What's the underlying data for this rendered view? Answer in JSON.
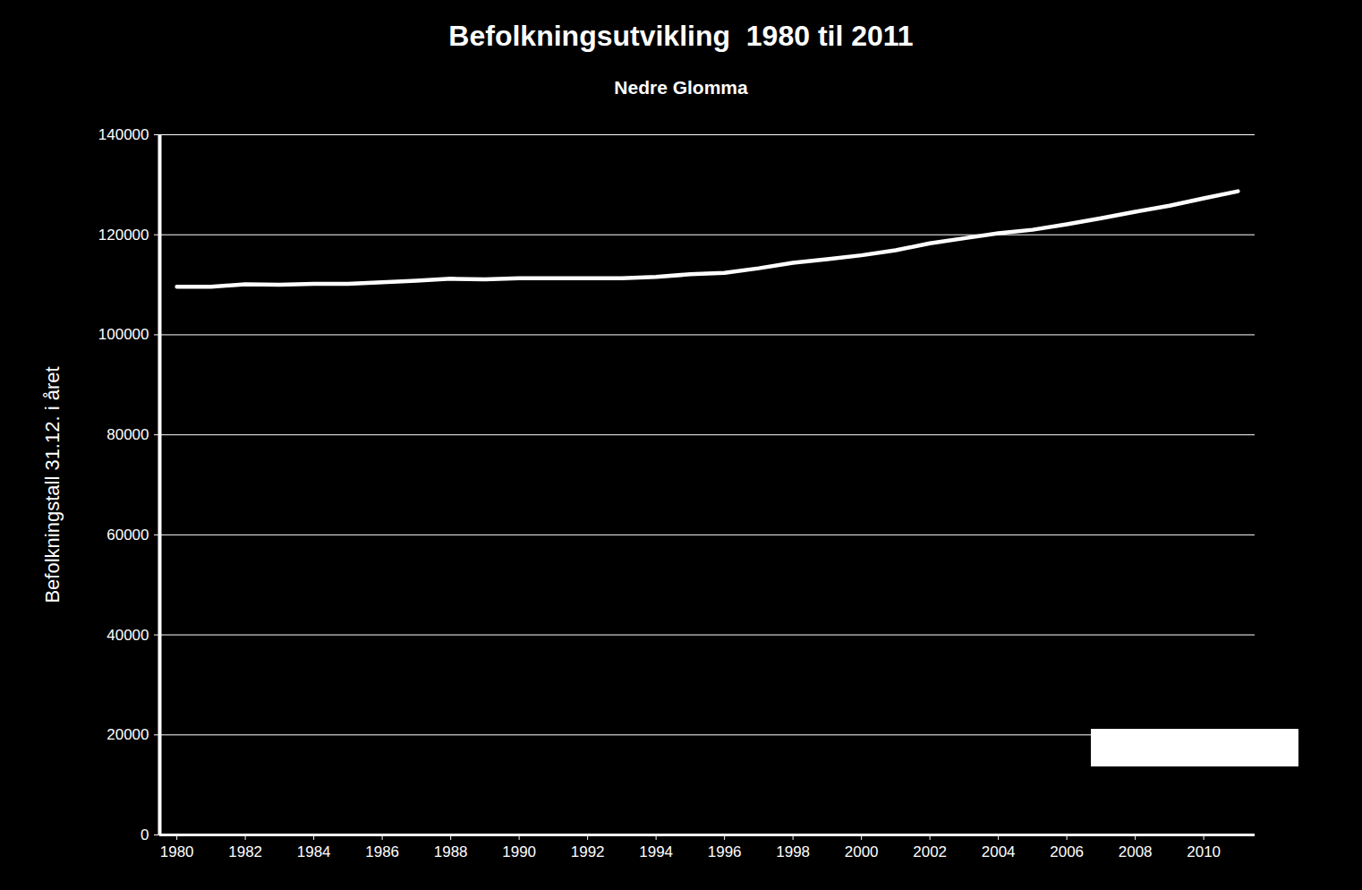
{
  "chart_data": {
    "type": "line",
    "title": "Befolkningsutvikling  1980 til 2011",
    "subtitle": "Nedre Glomma",
    "y_label": "Befolkningstall 31.12. i året",
    "x": [
      1980,
      1981,
      1982,
      1983,
      1984,
      1985,
      1986,
      1987,
      1988,
      1989,
      1990,
      1991,
      1992,
      1993,
      1994,
      1995,
      1996,
      1997,
      1998,
      1999,
      2000,
      2001,
      2002,
      2003,
      2004,
      2005,
      2006,
      2007,
      2008,
      2009,
      2010,
      2011
    ],
    "values": [
      109600,
      109600,
      110100,
      110000,
      110200,
      110200,
      110500,
      110800,
      111200,
      111100,
      111300,
      111300,
      111300,
      111300,
      111600,
      112100,
      112400,
      113300,
      114400,
      115100,
      115900,
      116900,
      118300,
      119300,
      120300,
      121000,
      122100,
      123300,
      124600,
      125800,
      127300,
      128700
    ],
    "color": "#ffffff",
    "xlim": [
      1979.5,
      2011.5
    ],
    "xticks": [
      1980,
      1982,
      1984,
      1986,
      1988,
      1990,
      1992,
      1994,
      1996,
      1998,
      2000,
      2002,
      2004,
      2006,
      2008,
      2010
    ],
    "ylim": [
      0,
      140000
    ],
    "yticks": [
      0,
      20000,
      40000,
      60000,
      80000,
      100000,
      120000,
      140000
    ],
    "grid": true
  }
}
